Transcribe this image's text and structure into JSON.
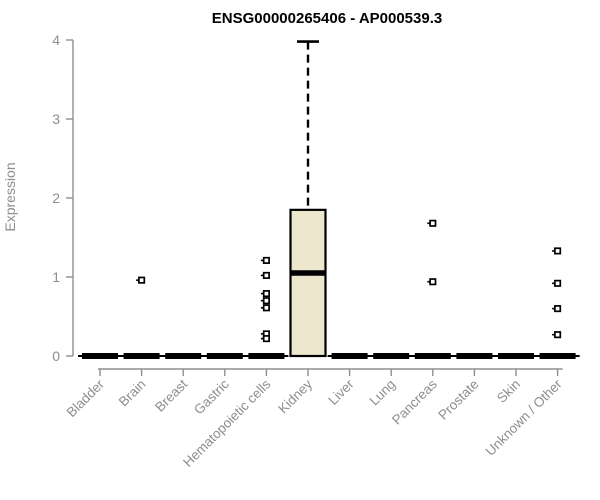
{
  "title": "ENSG00000265406 - AP000539.3",
  "ylabel": "Expression",
  "chart_data": {
    "type": "boxplot",
    "title": "ENSG00000265406 - AP000539.3",
    "xlabel": "",
    "ylabel": "Expression",
    "ylim": [
      0,
      4
    ],
    "yticks": [
      0,
      1,
      2,
      3,
      4
    ],
    "grid": false,
    "legend": "none",
    "categories": [
      "Bladder",
      "Brain",
      "Breast",
      "Gastric",
      "Hematopoietic cells",
      "Kidney",
      "Liver",
      "Lung",
      "Pancreas",
      "Prostate",
      "Skin",
      "Unknown / Other"
    ],
    "boxes": [
      {
        "category": "Bladder",
        "whisker_low": 0,
        "q1": 0,
        "median": 0,
        "q3": 0,
        "whisker_high": 0,
        "outliers": []
      },
      {
        "category": "Brain",
        "whisker_low": 0,
        "q1": 0,
        "median": 0,
        "q3": 0,
        "whisker_high": 0,
        "outliers": [
          0.96
        ]
      },
      {
        "category": "Breast",
        "whisker_low": 0,
        "q1": 0,
        "median": 0,
        "q3": 0,
        "whisker_high": 0,
        "outliers": []
      },
      {
        "category": "Gastric",
        "whisker_low": 0,
        "q1": 0,
        "median": 0,
        "q3": 0,
        "whisker_high": 0,
        "outliers": []
      },
      {
        "category": "Hematopoietic cells",
        "whisker_low": 0,
        "q1": 0,
        "median": 0,
        "q3": 0,
        "whisker_high": 0,
        "outliers": [
          1.21,
          1.02,
          0.79,
          0.7,
          0.61,
          0.28,
          0.22
        ]
      },
      {
        "category": "Kidney",
        "whisker_low": 0,
        "q1": 0,
        "median": 1.05,
        "q3": 1.85,
        "whisker_high": 3.98,
        "outliers": []
      },
      {
        "category": "Liver",
        "whisker_low": 0,
        "q1": 0,
        "median": 0,
        "q3": 0,
        "whisker_high": 0,
        "outliers": []
      },
      {
        "category": "Lung",
        "whisker_low": 0,
        "q1": 0,
        "median": 0,
        "q3": 0,
        "whisker_high": 0,
        "outliers": []
      },
      {
        "category": "Pancreas",
        "whisker_low": 0,
        "q1": 0,
        "median": 0,
        "q3": 0,
        "whisker_high": 0,
        "outliers": [
          1.68,
          0.94
        ]
      },
      {
        "category": "Prostate",
        "whisker_low": 0,
        "q1": 0,
        "median": 0,
        "q3": 0,
        "whisker_high": 0,
        "outliers": []
      },
      {
        "category": "Skin",
        "whisker_low": 0,
        "q1": 0,
        "median": 0,
        "q3": 0,
        "whisker_high": 0,
        "outliers": []
      },
      {
        "category": "Unknown / Other",
        "whisker_low": 0,
        "q1": 0,
        "median": 0,
        "q3": 0,
        "whisker_high": 0,
        "outliers": [
          1.33,
          0.92,
          0.6,
          0.27
        ]
      }
    ],
    "colors": {
      "box_fill": "#ECE7CD",
      "box_border": "#000000",
      "median": "#000000",
      "whisker": "#000000",
      "outlier_stroke": "#000000",
      "outlier_fill": "#ffffff",
      "axis": "#8e8e8e",
      "tick_text": "#8e8e8e",
      "title": "#000000",
      "background": "#ffffff"
    }
  }
}
